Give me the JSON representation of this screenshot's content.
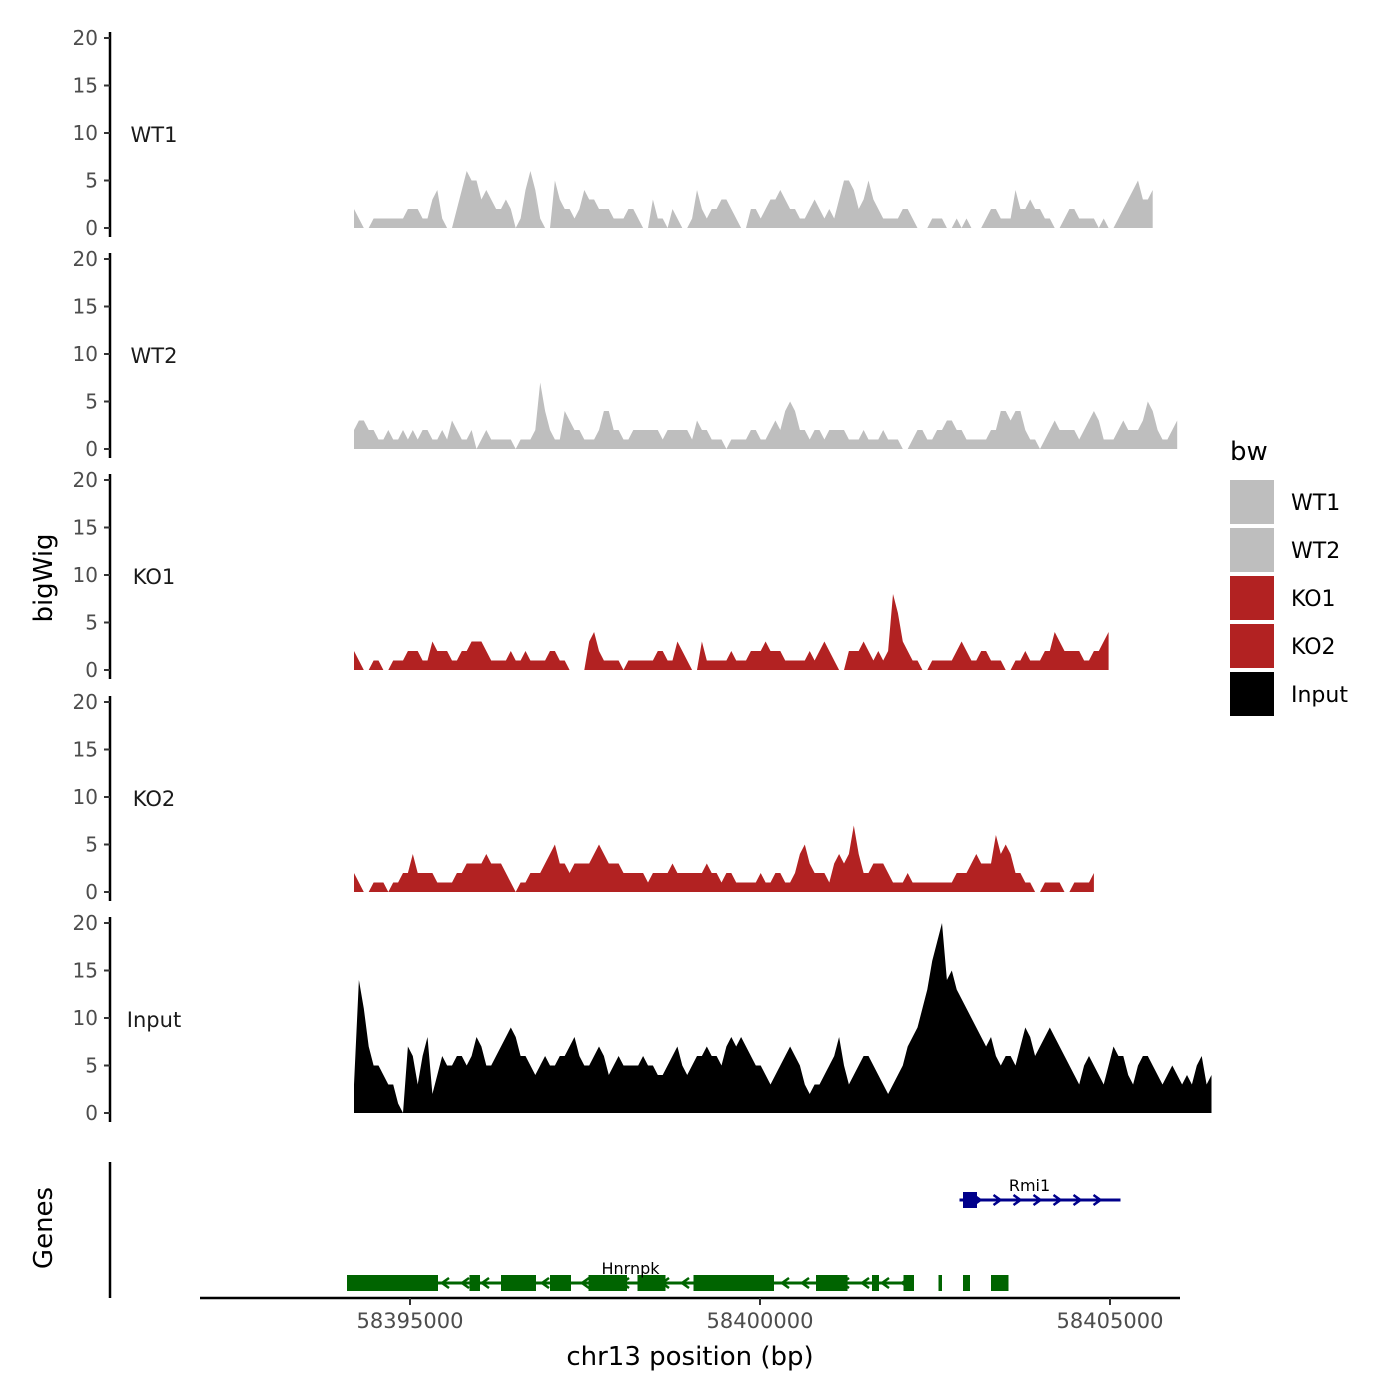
{
  "chart_data": {
    "type": "area",
    "title": "",
    "ylabel": "bigWig",
    "xlabel": "chr13 position (bp)",
    "genes_label": "Genes",
    "ylim": [
      0,
      20
    ],
    "y_ticks": [
      0,
      5,
      10,
      15,
      20
    ],
    "x_range": [
      58392000,
      58406000
    ],
    "x_ticks": [
      58395000,
      58400000,
      58405000
    ],
    "x_tick_labels": [
      "58395000",
      "58400000",
      "58405000"
    ],
    "legend": {
      "title": "bw",
      "position": "right",
      "entries": [
        {
          "label": "WT1",
          "color": "#bebebe"
        },
        {
          "label": "WT2",
          "color": "#bebebe"
        },
        {
          "label": "KO1",
          "color": "#b22222"
        },
        {
          "label": "KO2",
          "color": "#b22222"
        },
        {
          "label": "Input",
          "color": "#000000"
        }
      ]
    },
    "track_start": 58394200,
    "track_step": 70,
    "series": [
      {
        "name": "WT1",
        "color": "#bebebe",
        "values": [
          2,
          1,
          0,
          0,
          1,
          1,
          1,
          1,
          1,
          1,
          1,
          2,
          2,
          2,
          1,
          1,
          3,
          4,
          1,
          0,
          0,
          2,
          4,
          6,
          5,
          5,
          3,
          4,
          3,
          2,
          2,
          3,
          2,
          0,
          1,
          4,
          6,
          4,
          1,
          0,
          0,
          5,
          3,
          2,
          2,
          1,
          2,
          4,
          3,
          3,
          2,
          2,
          2,
          1,
          1,
          1,
          2,
          2,
          1,
          0,
          0,
          3,
          1,
          1,
          0,
          2,
          1,
          0,
          0,
          1,
          4,
          2,
          1,
          2,
          2,
          3,
          3,
          2,
          1,
          0,
          0,
          2,
          2,
          1,
          2,
          3,
          3,
          4,
          3,
          2,
          2,
          1,
          1,
          2,
          3,
          2,
          1,
          2,
          1,
          3,
          5,
          5,
          4,
          2,
          3,
          5,
          3,
          2,
          1,
          1,
          1,
          1,
          2,
          2,
          1,
          0,
          0,
          0,
          1,
          1,
          1,
          0,
          0,
          1,
          0,
          1,
          0,
          0,
          0,
          1,
          2,
          2,
          1,
          1,
          1,
          4,
          2,
          2,
          3,
          2,
          2,
          1,
          1,
          0,
          0,
          1,
          2,
          2,
          1,
          1,
          1,
          1,
          0,
          1,
          0,
          0,
          1,
          2,
          3,
          4,
          5,
          3,
          3,
          4
        ]
      },
      {
        "name": "WT2",
        "color": "#bebebe",
        "values": [
          2,
          3,
          3,
          2,
          2,
          1,
          1,
          2,
          1,
          1,
          2,
          1,
          2,
          1,
          2,
          2,
          1,
          1,
          2,
          1,
          3,
          2,
          1,
          1,
          2,
          0,
          1,
          2,
          1,
          1,
          1,
          1,
          1,
          0,
          1,
          1,
          1,
          2,
          7,
          4,
          2,
          1,
          1,
          4,
          3,
          2,
          2,
          1,
          1,
          1,
          2,
          4,
          4,
          2,
          2,
          1,
          1,
          2,
          2,
          2,
          2,
          2,
          2,
          1,
          2,
          2,
          2,
          2,
          2,
          1,
          3,
          2,
          2,
          1,
          1,
          1,
          0,
          1,
          1,
          1,
          1,
          2,
          2,
          1,
          1,
          2,
          3,
          2,
          4,
          5,
          4,
          2,
          2,
          1,
          2,
          2,
          1,
          2,
          2,
          2,
          2,
          1,
          1,
          1,
          2,
          1,
          1,
          1,
          2,
          1,
          1,
          1,
          0,
          0,
          1,
          2,
          2,
          1,
          1,
          2,
          2,
          3,
          3,
          2,
          2,
          1,
          1,
          1,
          1,
          1,
          2,
          2,
          4,
          4,
          3,
          4,
          4,
          2,
          1,
          1,
          0,
          1,
          2,
          3,
          2,
          2,
          2,
          2,
          1,
          2,
          3,
          4,
          3,
          1,
          1,
          1,
          2,
          3,
          2,
          2,
          2,
          3,
          5,
          4,
          2,
          1,
          1,
          2,
          3
        ]
      },
      {
        "name": "KO1",
        "color": "#b22222",
        "values": [
          2,
          1,
          0,
          0,
          1,
          1,
          0,
          0,
          1,
          1,
          1,
          2,
          2,
          2,
          1,
          1,
          3,
          2,
          2,
          2,
          1,
          1,
          2,
          2,
          3,
          3,
          3,
          2,
          1,
          1,
          1,
          1,
          2,
          1,
          1,
          2,
          1,
          1,
          1,
          1,
          2,
          2,
          1,
          1,
          0,
          0,
          0,
          0,
          3,
          4,
          2,
          1,
          1,
          1,
          1,
          0,
          1,
          1,
          1,
          1,
          1,
          1,
          2,
          2,
          1,
          1,
          3,
          2,
          1,
          0,
          0,
          3,
          1,
          1,
          1,
          1,
          1,
          2,
          1,
          1,
          1,
          2,
          2,
          2,
          3,
          2,
          2,
          2,
          1,
          1,
          1,
          1,
          1,
          2,
          1,
          2,
          3,
          2,
          1,
          0,
          0,
          2,
          2,
          2,
          3,
          2,
          1,
          2,
          1,
          2,
          8,
          6,
          3,
          2,
          1,
          1,
          0,
          0,
          1,
          1,
          1,
          1,
          1,
          2,
          3,
          2,
          1,
          1,
          2,
          2,
          1,
          1,
          1,
          0,
          0,
          1,
          1,
          2,
          1,
          1,
          1,
          2,
          2,
          4,
          3,
          2,
          2,
          2,
          2,
          1,
          1,
          2,
          2,
          3,
          4
        ]
      },
      {
        "name": "KO2",
        "color": "#b22222",
        "values": [
          2,
          1,
          0,
          0,
          1,
          1,
          1,
          0,
          1,
          1,
          2,
          2,
          4,
          2,
          2,
          2,
          2,
          1,
          1,
          1,
          1,
          2,
          2,
          3,
          3,
          3,
          3,
          4,
          3,
          3,
          3,
          2,
          1,
          0,
          1,
          1,
          2,
          2,
          2,
          3,
          4,
          5,
          3,
          3,
          2,
          3,
          3,
          3,
          3,
          4,
          5,
          4,
          3,
          3,
          3,
          2,
          2,
          2,
          2,
          2,
          1,
          2,
          2,
          2,
          2,
          3,
          2,
          2,
          2,
          2,
          2,
          2,
          3,
          2,
          2,
          1,
          2,
          2,
          1,
          1,
          1,
          1,
          1,
          2,
          1,
          1,
          2,
          2,
          1,
          1,
          2,
          4,
          5,
          3,
          2,
          2,
          2,
          1,
          3,
          4,
          3,
          4,
          7,
          4,
          2,
          2,
          3,
          3,
          3,
          2,
          1,
          1,
          1,
          2,
          1,
          1,
          1,
          1,
          1,
          1,
          1,
          1,
          1,
          2,
          2,
          2,
          3,
          4,
          3,
          3,
          3,
          6,
          4,
          5,
          4,
          2,
          2,
          1,
          1,
          0,
          0,
          1,
          1,
          1,
          1,
          0,
          0,
          1,
          1,
          1,
          1,
          2
        ]
      },
      {
        "name": "Input",
        "color": "#000000",
        "values": [
          3,
          14,
          11,
          7,
          5,
          5,
          4,
          3,
          3,
          1,
          0,
          7,
          6,
          3,
          6,
          8,
          2,
          4,
          6,
          5,
          5,
          6,
          6,
          5,
          6,
          8,
          7,
          5,
          5,
          6,
          7,
          8,
          9,
          8,
          6,
          6,
          5,
          4,
          5,
          6,
          5,
          5,
          6,
          6,
          7,
          8,
          6,
          5,
          5,
          6,
          7,
          6,
          4,
          5,
          6,
          5,
          5,
          5,
          5,
          6,
          5,
          5,
          4,
          4,
          5,
          6,
          7,
          5,
          4,
          5,
          6,
          6,
          7,
          6,
          6,
          5,
          7,
          8,
          7,
          8,
          7,
          6,
          5,
          5,
          4,
          3,
          4,
          5,
          6,
          7,
          6,
          5,
          3,
          2,
          3,
          3,
          4,
          5,
          6,
          8,
          5,
          3,
          4,
          5,
          6,
          6,
          5,
          4,
          3,
          2,
          3,
          4,
          5,
          7,
          8,
          9,
          11,
          13,
          16,
          18,
          20,
          14,
          15,
          13,
          12,
          11,
          10,
          9,
          8,
          7,
          8,
          6,
          5,
          6,
          6,
          5,
          7,
          9,
          8,
          6,
          7,
          8,
          9,
          8,
          7,
          6,
          5,
          4,
          3,
          5,
          6,
          5,
          4,
          3,
          5,
          7,
          6,
          6,
          4,
          3,
          5,
          6,
          6,
          5,
          4,
          3,
          4,
          5,
          4,
          3,
          4,
          3,
          5,
          6,
          3,
          4
        ]
      }
    ],
    "genes": [
      {
        "name": "Hnrnpk",
        "strand": "-",
        "color": "#006400",
        "start": 58394100,
        "end": 58402200,
        "exons": [
          [
            58394100,
            58395400
          ],
          [
            58395850,
            58396000
          ],
          [
            58396300,
            58396800
          ],
          [
            58397000,
            58397300
          ],
          [
            58397550,
            58398100
          ],
          [
            58398250,
            58398650
          ],
          [
            58399050,
            58400200
          ],
          [
            58400800,
            58401250
          ],
          [
            58401600,
            58401700
          ],
          [
            58402050,
            58402200
          ],
          [
            58402550,
            58402600
          ],
          [
            58402900,
            58403000
          ],
          [
            58403300,
            58403550
          ]
        ]
      },
      {
        "name": "Rmi1",
        "strand": "+",
        "color": "#00008b",
        "start": 58402850,
        "end": 58405150,
        "exons": [
          [
            58402900,
            58403100
          ]
        ]
      }
    ]
  }
}
